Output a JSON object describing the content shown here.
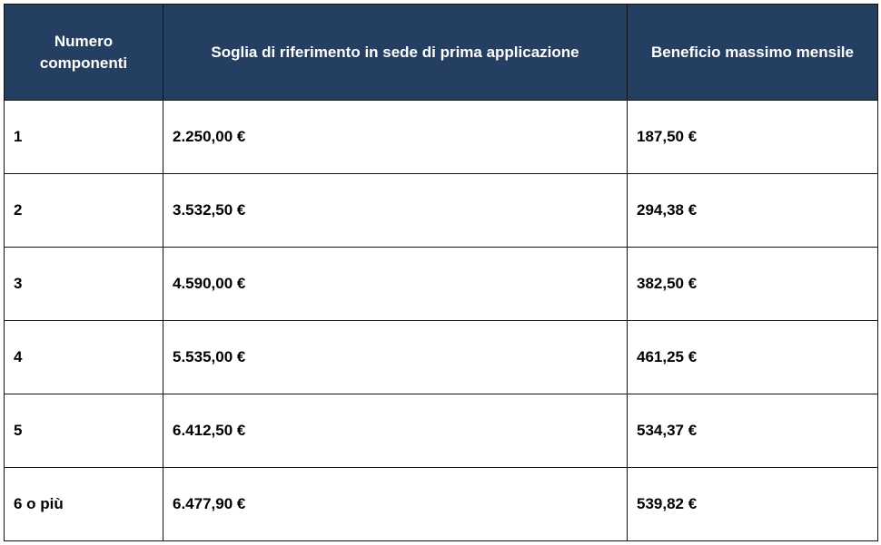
{
  "table": {
    "headers": [
      "Numero componenti",
      "Soglia di riferimento in sede di prima applicazione",
      "Beneficio massimo mensile"
    ],
    "rows": [
      {
        "components": "1",
        "threshold": "2.250,00 €",
        "benefit": "187,50 €"
      },
      {
        "components": "2",
        "threshold": "3.532,50 €",
        "benefit": "294,38 €"
      },
      {
        "components": "3",
        "threshold": "4.590,00 €",
        "benefit": "382,50 €"
      },
      {
        "components": "4",
        "threshold": "5.535,00 €",
        "benefit": "461,25 €"
      },
      {
        "components": "5",
        "threshold": "6.412,50 €",
        "benefit": "534,37 €"
      },
      {
        "components": "6 o più",
        "threshold": "6.477,90 €",
        "benefit": "539,82 €"
      }
    ]
  },
  "colors": {
    "header_background": "#243f61",
    "header_text": "#ffffff",
    "border": "#111111"
  }
}
